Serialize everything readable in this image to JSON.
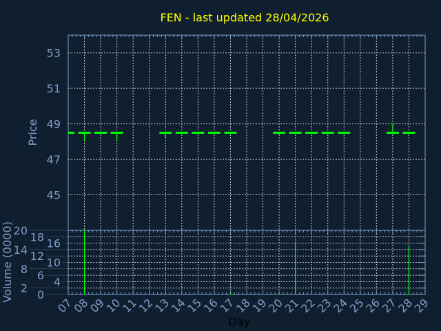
{
  "chart_data": {
    "type": "candlestick",
    "title": "FEN - last updated 28/04/2026",
    "xlabel": "Day",
    "price_panel": {
      "ylabel": "Price",
      "ylim": [
        43,
        54
      ],
      "yticks": [
        "45",
        "47",
        "49",
        "51",
        "53"
      ],
      "grid": true
    },
    "volume_panel": {
      "ylabel": "Volume (0000)",
      "ylim": [
        0,
        20
      ],
      "yticks": [
        "0",
        "2",
        "4",
        "6",
        "8",
        "10",
        "12",
        "14",
        "16",
        "18",
        "20"
      ],
      "grid": true
    },
    "xticks": [
      "07",
      "08",
      "09",
      "10",
      "11",
      "12",
      "13",
      "14",
      "15",
      "16",
      "17",
      "18",
      "19",
      "20",
      "21",
      "22",
      "23",
      "24",
      "25",
      "26",
      "27",
      "28",
      "29"
    ],
    "candles": [
      {
        "day": 7,
        "open": 48.5,
        "high": 48.5,
        "low": 48.5,
        "close": 48.5,
        "volume": 0
      },
      {
        "day": 8,
        "open": 48.5,
        "high": 48.5,
        "low": 48.0,
        "close": 48.5,
        "volume": 20
      },
      {
        "day": 9,
        "open": 48.5,
        "high": 48.5,
        "low": 48.5,
        "close": 48.5,
        "volume": 0
      },
      {
        "day": 10,
        "open": 48.5,
        "high": 48.5,
        "low": 48.0,
        "close": 48.5,
        "volume": 0
      },
      {
        "day": 13,
        "open": 48.5,
        "high": 48.5,
        "low": 48.2,
        "close": 48.5,
        "volume": 0.5
      },
      {
        "day": 14,
        "open": 48.5,
        "high": 48.5,
        "low": 48.5,
        "close": 48.5,
        "volume": 0
      },
      {
        "day": 15,
        "open": 48.5,
        "high": 48.5,
        "low": 48.5,
        "close": 48.5,
        "volume": 0
      },
      {
        "day": 16,
        "open": 48.5,
        "high": 48.5,
        "low": 48.5,
        "close": 48.5,
        "volume": 0
      },
      {
        "day": 17,
        "open": 48.5,
        "high": 48.5,
        "low": 48.5,
        "close": 48.5,
        "volume": 0.5
      },
      {
        "day": 20,
        "open": 48.5,
        "high": 48.5,
        "low": 48.4,
        "close": 48.5,
        "volume": 0.5
      },
      {
        "day": 21,
        "open": 48.5,
        "high": 48.5,
        "low": 48.45,
        "close": 48.5,
        "volume": 16
      },
      {
        "day": 22,
        "open": 48.5,
        "high": 48.5,
        "low": 48.5,
        "close": 48.5,
        "volume": 0
      },
      {
        "day": 23,
        "open": 48.5,
        "high": 48.5,
        "low": 48.5,
        "close": 48.5,
        "volume": 0
      },
      {
        "day": 24,
        "open": 48.5,
        "high": 48.5,
        "low": 48.5,
        "close": 48.5,
        "volume": 0
      },
      {
        "day": 27,
        "open": 48.5,
        "high": 49.0,
        "low": 48.5,
        "close": 48.5,
        "volume": 0
      },
      {
        "day": 28,
        "open": 48.5,
        "high": 48.5,
        "low": 48.4,
        "close": 48.5,
        "volume": 15
      }
    ],
    "colors": {
      "background": "#0f1f30",
      "axis": "#7f9fc8",
      "candle": "#00ff00",
      "title": "#ffff00",
      "grid": "#c8c8c8"
    }
  }
}
